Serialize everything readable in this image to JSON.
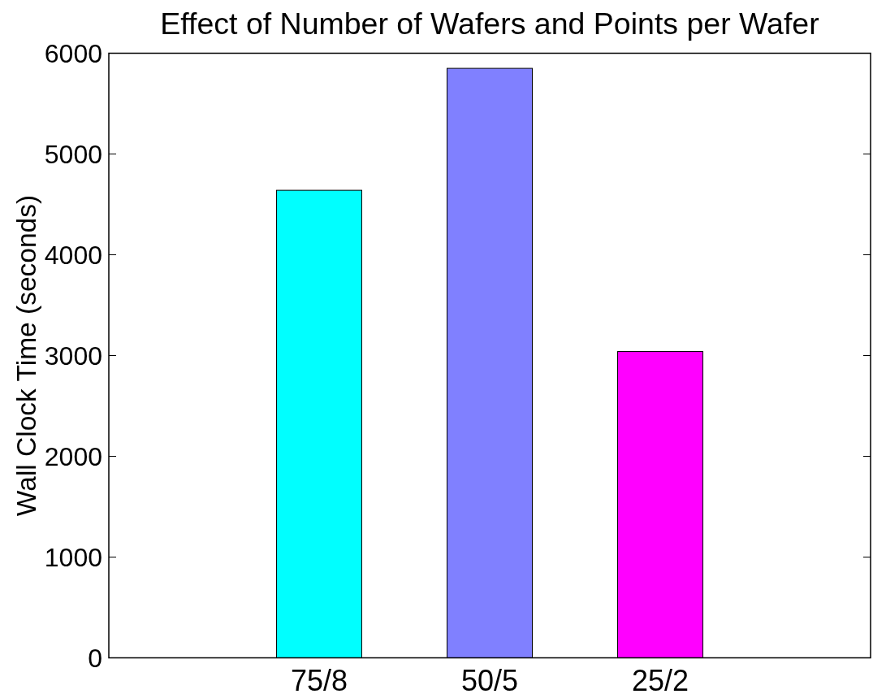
{
  "chart_data": {
    "type": "bar",
    "title": "Effect of Number of Wafers and Points per Wafer",
    "ylabel": "Wall Clock Time (seconds)",
    "categories": [
      "75/8",
      "50/5",
      "25/2"
    ],
    "values": [
      4640,
      5850,
      3040
    ],
    "colors": [
      "#00ffff",
      "#8080ff",
      "#ff00ff"
    ],
    "ylim": [
      0,
      6000
    ],
    "yticks": [
      0,
      1000,
      2000,
      3000,
      4000,
      5000,
      6000
    ]
  }
}
